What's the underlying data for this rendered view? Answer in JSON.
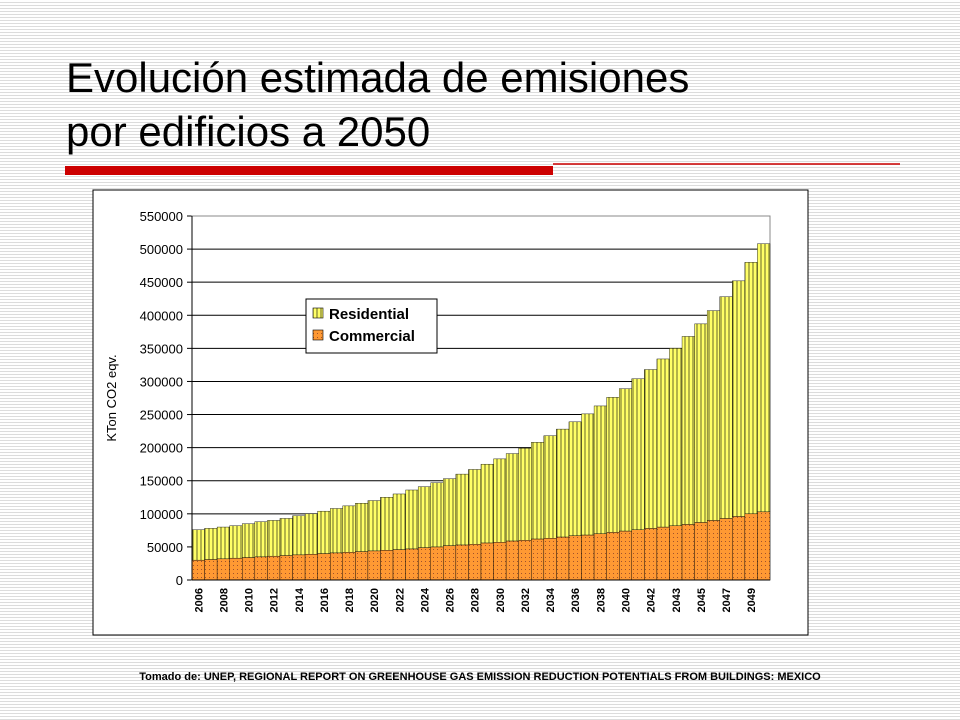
{
  "slide": {
    "title_lines": [
      "Evolución estimada de emisiones",
      "por edificios a 2050"
    ],
    "source": "Tomado de: UNEP, REGIONAL REPORT ON GREENHOUSE GAS EMISSION REDUCTION POTENTIALS FROM BUILDINGS: MEXICO"
  },
  "chart_data": {
    "type": "bar",
    "stacked": true,
    "ylabel": "KTon CO2 eqv.",
    "categories": [
      "2006",
      null,
      "2008",
      null,
      "2010",
      null,
      "2012",
      null,
      "2014",
      null,
      "2016",
      null,
      "2018",
      null,
      "2020",
      null,
      "2022",
      null,
      "2024",
      null,
      "2026",
      null,
      "2028",
      null,
      "2030",
      null,
      "2032",
      null,
      "2034",
      null,
      "2036",
      null,
      "2038",
      null,
      "2040",
      null,
      "2042",
      null,
      "2043",
      null,
      "2045",
      null,
      "2047",
      null,
      "2049",
      null
    ],
    "series": [
      {
        "name": "Commercial",
        "color": "#ff9933",
        "pattern": "dots",
        "values": [
          30000,
          31000,
          32000,
          33000,
          34000,
          35000,
          36000,
          37000,
          38000,
          39000,
          40000,
          41000,
          42000,
          43000,
          44000,
          45000,
          46000,
          47000,
          49000,
          50000,
          52000,
          53000,
          54000,
          56000,
          57000,
          59000,
          60000,
          62000,
          63000,
          65000,
          67000,
          68000,
          70000,
          72000,
          74000,
          76000,
          78000,
          80000,
          82000,
          84000,
          87000,
          90000,
          93000,
          96000,
          100000,
          103000
        ]
      },
      {
        "name": "Residential",
        "color": "#ffff66",
        "pattern": "vlines",
        "values": [
          46000,
          47000,
          48000,
          49000,
          51000,
          53000,
          54000,
          56000,
          59000,
          61000,
          64000,
          67000,
          70000,
          73000,
          76000,
          80000,
          84000,
          89000,
          92000,
          97000,
          101000,
          107000,
          113000,
          119000,
          126000,
          132000,
          139000,
          146000,
          155000,
          163000,
          172000,
          183000,
          193000,
          204000,
          215000,
          228000,
          240000,
          254000,
          268000,
          284000,
          300000,
          317000,
          335000,
          356000,
          380000,
          405000
        ]
      }
    ],
    "ylim": [
      0,
      550000
    ],
    "yticks": [
      0,
      50000,
      100000,
      150000,
      200000,
      250000,
      300000,
      350000,
      400000,
      450000,
      500000,
      550000
    ],
    "grid": true,
    "legend": "upper left"
  }
}
